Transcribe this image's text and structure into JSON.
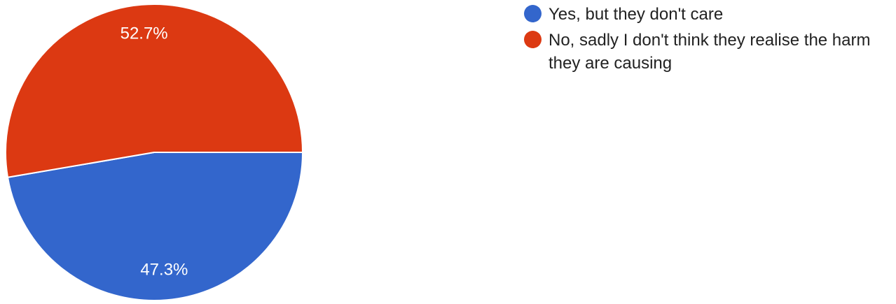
{
  "chart_data": {
    "type": "pie",
    "title": "",
    "legend_position": "right",
    "slices": [
      {
        "label": "Yes, but they don't care",
        "value": 47.3,
        "display": "47.3%",
        "color": "#3366cc"
      },
      {
        "label": "No, sadly I don't think they realise the harm they are causing",
        "value": 52.7,
        "display": "52.7%",
        "color": "#dc3912"
      }
    ]
  }
}
